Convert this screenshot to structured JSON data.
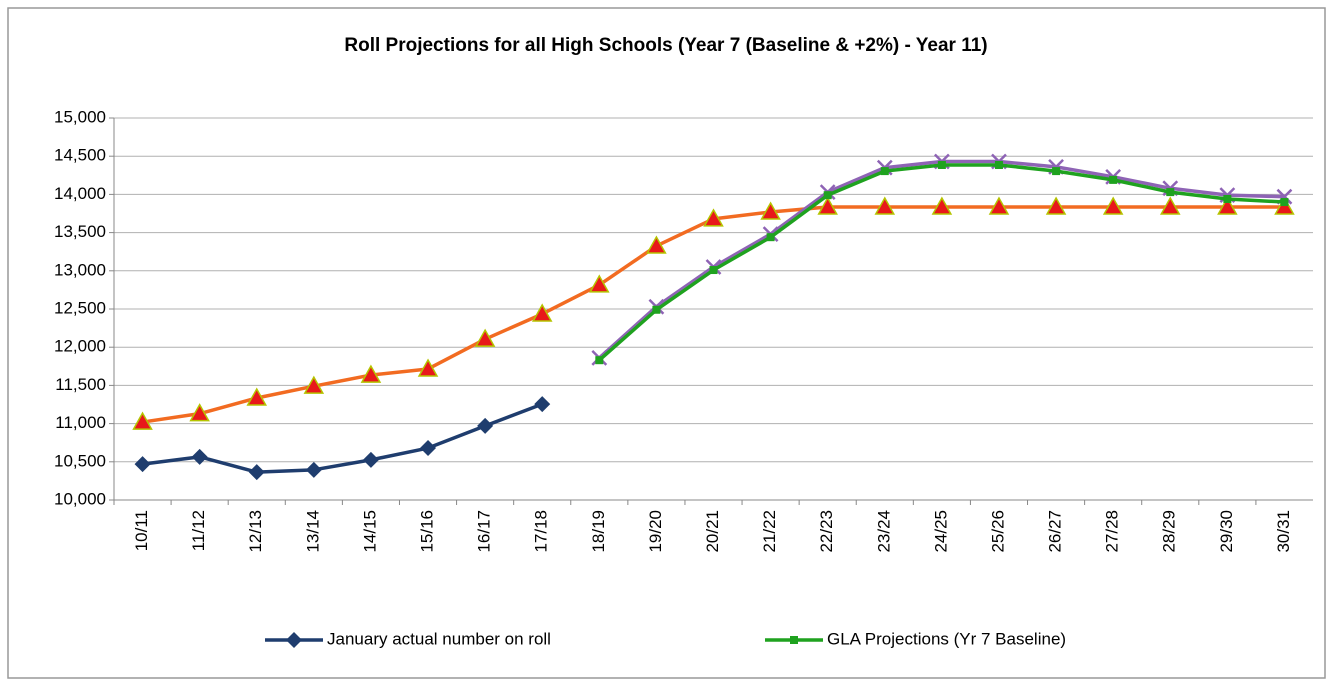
{
  "chart_data": {
    "type": "line",
    "title": "Roll Projections for all High Schools (Year 7 (Baseline & +2%) -  Year 11)",
    "categories": [
      "10/11",
      "11/12",
      "12/13",
      "13/14",
      "14/15",
      "15/16",
      "16/17",
      "17/18",
      "18/19",
      "19/20",
      "20/21",
      "21/22",
      "22/23",
      "23/24",
      "24/25",
      "25/26",
      "26/27",
      "27/28",
      "28/29",
      "29/30",
      "30/31"
    ],
    "series": [
      {
        "color": "#f26b21",
        "marker": "triangle",
        "marker_color": "#e8181a",
        "marker_edge": "#b5c400",
        "values": [
          11020,
          11130,
          11335,
          11490,
          11635,
          11715,
          12105,
          12435,
          12815,
          13325,
          13680,
          13770,
          13835,
          13835,
          13835,
          13835,
          13835,
          13835,
          13835,
          13835,
          13835
        ]
      },
      {
        "color": "#8e63b5",
        "marker": "x",
        "values": [
          null,
          null,
          null,
          null,
          null,
          null,
          null,
          null,
          11860,
          12530,
          13050,
          13480,
          14030,
          14350,
          14430,
          14430,
          14360,
          14230,
          14080,
          13990,
          13970
        ]
      },
      {
        "name": "GLA Projections (Yr 7 Baseline)",
        "color": "#1fa21f",
        "marker": "square",
        "values": [
          null,
          null,
          null,
          null,
          null,
          null,
          null,
          null,
          11830,
          12490,
          13010,
          13440,
          13990,
          14305,
          14385,
          14385,
          14305,
          14190,
          14030,
          13940,
          13900
        ]
      },
      {
        "name": "January actual number on roll",
        "color": "#1f3d6e",
        "marker": "diamond",
        "values": [
          10470,
          10565,
          10365,
          10395,
          10525,
          10680,
          10970,
          11255,
          null,
          null,
          null,
          null,
          null,
          null,
          null,
          null,
          null,
          null,
          null,
          null,
          null
        ]
      }
    ],
    "ylim": [
      10000,
      15000
    ],
    "yticks": [
      {
        "value": 10000,
        "label": "10,000"
      },
      {
        "value": 10500,
        "label": "10,500"
      },
      {
        "value": 11000,
        "label": "11,000"
      },
      {
        "value": 11500,
        "label": "11,500"
      },
      {
        "value": 12000,
        "label": "12,000"
      },
      {
        "value": 12500,
        "label": "12,500"
      },
      {
        "value": 13000,
        "label": "13,000"
      },
      {
        "value": 13500,
        "label": "13,500"
      },
      {
        "value": 14000,
        "label": "14,000"
      },
      {
        "value": 14500,
        "label": "14,500"
      },
      {
        "value": 15000,
        "label": "15,000"
      }
    ],
    "grid": true,
    "legend": "bottom"
  }
}
